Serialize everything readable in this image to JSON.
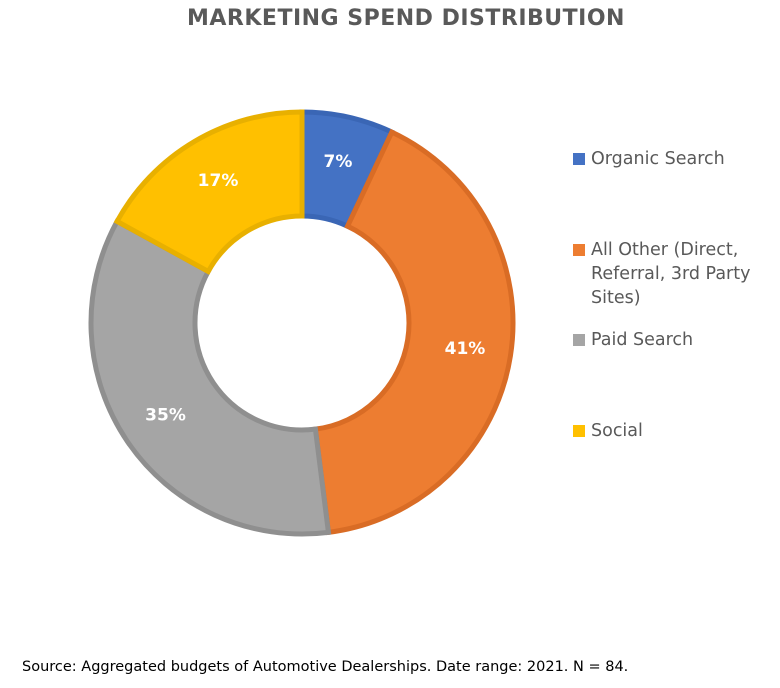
{
  "chart_data": {
    "type": "pie",
    "title": "MARKETING SPEND DISTRIBUTION",
    "categories": [
      "Organic Search",
      "All Other (Direct, Referral, 3rd Party Sites)",
      "Paid Search",
      "Social"
    ],
    "values": [
      7,
      41,
      35,
      17
    ],
    "data_labels": [
      "7%",
      "41%",
      "35%",
      "17%"
    ],
    "colors": [
      "#4472C4",
      "#ED7D31",
      "#A5A5A5",
      "#FFC000"
    ],
    "border_colors": [
      "#3A66B5",
      "#D96C25",
      "#8F8F8F",
      "#E8B000"
    ],
    "legend_position": "right",
    "hole": "donut"
  },
  "footnote": "Source: Aggregated budgets of Automotive Dealerships. Date range: 2021. N = 84."
}
